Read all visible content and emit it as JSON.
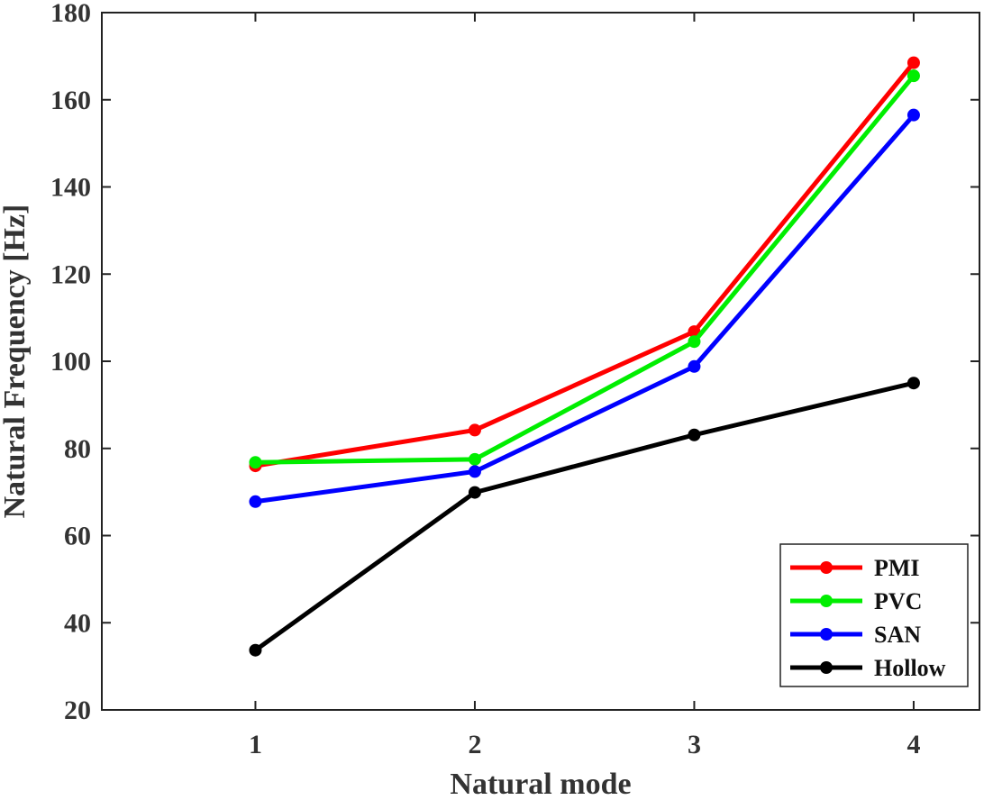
{
  "chart_data": {
    "type": "line",
    "title": "",
    "xlabel": "Natural mode",
    "ylabel": "Natural Frequency [Hz]",
    "categories": [
      1,
      2,
      3,
      4
    ],
    "xticks": [
      "1",
      "2",
      "3",
      "4"
    ],
    "xlim": [
      0.3,
      4.3
    ],
    "ylim": [
      20,
      180
    ],
    "yticks": [
      20,
      40,
      60,
      80,
      100,
      120,
      140,
      160,
      180
    ],
    "ytick_labels": [
      "20",
      "40",
      "60",
      "80",
      "100",
      "120",
      "140",
      "160",
      "180"
    ],
    "grid": false,
    "legend_position": "bottom-right",
    "series": [
      {
        "name": "PMI",
        "color": "#ff0000",
        "values": [
          76,
          84.2,
          106.8,
          168.5
        ]
      },
      {
        "name": "PVC",
        "color": "#00ee00",
        "values": [
          76.8,
          77.5,
          104.5,
          165.5
        ]
      },
      {
        "name": "SAN",
        "color": "#0000ff",
        "values": [
          67.8,
          74.7,
          98.8,
          156.5
        ]
      },
      {
        "name": "Hollow",
        "color": "#000000",
        "values": [
          33.7,
          69.9,
          83.1,
          95
        ]
      }
    ]
  }
}
